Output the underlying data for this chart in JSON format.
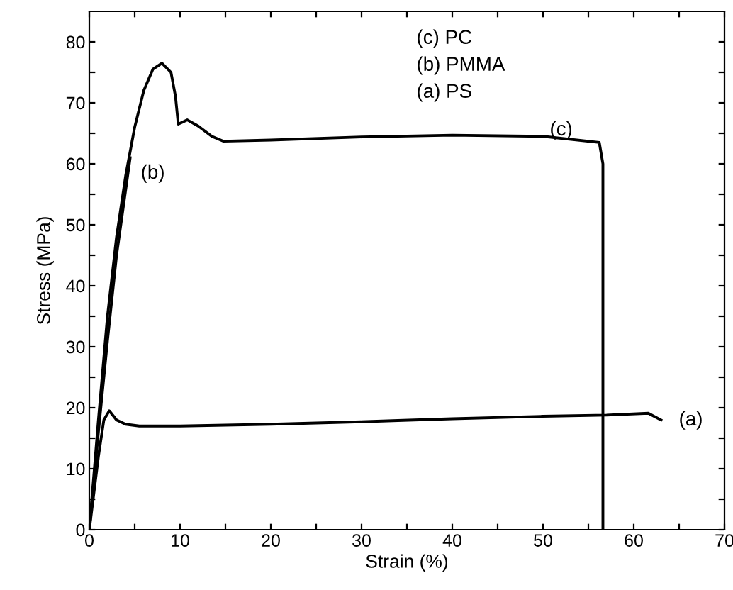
{
  "chart_data": {
    "type": "line",
    "xlabel": "Strain (%)",
    "ylabel": "Stress (MPa)",
    "xlim": [
      0,
      70
    ],
    "ylim": [
      0,
      85
    ],
    "xticks": [
      0,
      {
        "value": 5,
        "label": null
      },
      10,
      {
        "value": 15,
        "label": null
      },
      20,
      {
        "value": 25,
        "label": null
      },
      30,
      {
        "value": 35,
        "label": null
      },
      40,
      {
        "value": 45,
        "label": null
      },
      50,
      {
        "value": 55,
        "label": null
      },
      60,
      {
        "value": 65,
        "label": null
      },
      70
    ],
    "yticks": [
      0,
      {
        "value": 5,
        "label": null
      },
      10,
      {
        "value": 15,
        "label": null
      },
      20,
      {
        "value": 25,
        "label": null
      },
      30,
      {
        "value": 35,
        "label": null
      },
      40,
      {
        "value": 45,
        "label": null
      },
      50,
      {
        "value": 55,
        "label": null
      },
      60,
      {
        "value": 65,
        "label": null
      },
      70,
      {
        "value": 75,
        "label": null
      },
      80
    ],
    "grid": false,
    "legend": false,
    "marker": "none",
    "line_style": "solid",
    "series": [
      {
        "color": "#000000",
        "x": [
          0,
          1,
          1.6,
          2.2,
          3,
          4,
          5.5,
          10,
          20,
          30,
          34,
          40,
          50,
          57,
          61.6,
          63
        ],
        "values": [
          0,
          12,
          18,
          19.5,
          18,
          17.3,
          17.0,
          17.0,
          17.3,
          17.7,
          17.9,
          18.2,
          18.6,
          18.8,
          19.1,
          18.0
        ]
      },
      {
        "color": "#000000",
        "x": [
          0,
          1,
          2,
          3,
          4.5
        ],
        "values": [
          0,
          16,
          31,
          45,
          61
        ]
      },
      {
        "color": "#000000",
        "x": [
          0,
          1,
          2,
          3,
          4,
          5,
          6,
          7,
          8,
          9,
          9.5,
          9.8,
          10.8,
          12,
          13.5,
          14.8,
          20,
          30,
          40,
          50,
          56.2,
          56.6,
          56.6
        ],
        "values": [
          0,
          18,
          35,
          48,
          58,
          66,
          72,
          75.5,
          76.5,
          75,
          71,
          66.5,
          67.2,
          66.2,
          64.5,
          63.7,
          63.9,
          64.4,
          64.7,
          64.5,
          63.5,
          60,
          0
        ]
      }
    ],
    "annotations": [
      "(a)",
      "(b)",
      {
        "text": "(c)",
        "x": 52,
        "y": 65.5
      },
      "(c) PC",
      "(b) PMMA",
      "(a) PS"
    ]
  }
}
